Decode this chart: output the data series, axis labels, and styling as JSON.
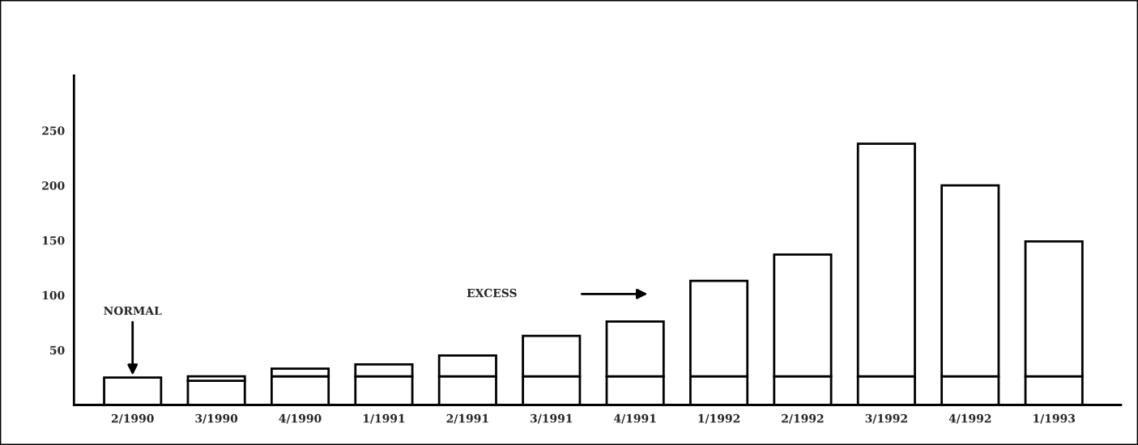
{
  "chart_data": {
    "type": "bar",
    "stacked": true,
    "categories": [
      "2/1990",
      "3/1990",
      "4/1990",
      "1/1991",
      "2/1991",
      "3/1991",
      "4/1991",
      "1/1992",
      "2/1992",
      "3/1992",
      "4/1992",
      "1/1993"
    ],
    "series": [
      {
        "color": "#ffffff",
        "values": [
          25,
          22,
          26,
          26,
          26,
          26,
          26,
          26,
          26,
          26,
          26,
          26
        ]
      },
      {
        "color": "#ffffff",
        "values": [
          null,
          4,
          7,
          11,
          19,
          37,
          50,
          87,
          111,
          212,
          174,
          123
        ]
      }
    ],
    "ylim": [
      0,
      300
    ],
    "yticks": [
      50,
      100,
      150,
      200,
      250
    ],
    "grid": false,
    "legend": false,
    "annotations": [
      {
        "text": "NORMAL",
        "x": "2/1990",
        "y": 25
      },
      "EXCESS"
    ]
  }
}
